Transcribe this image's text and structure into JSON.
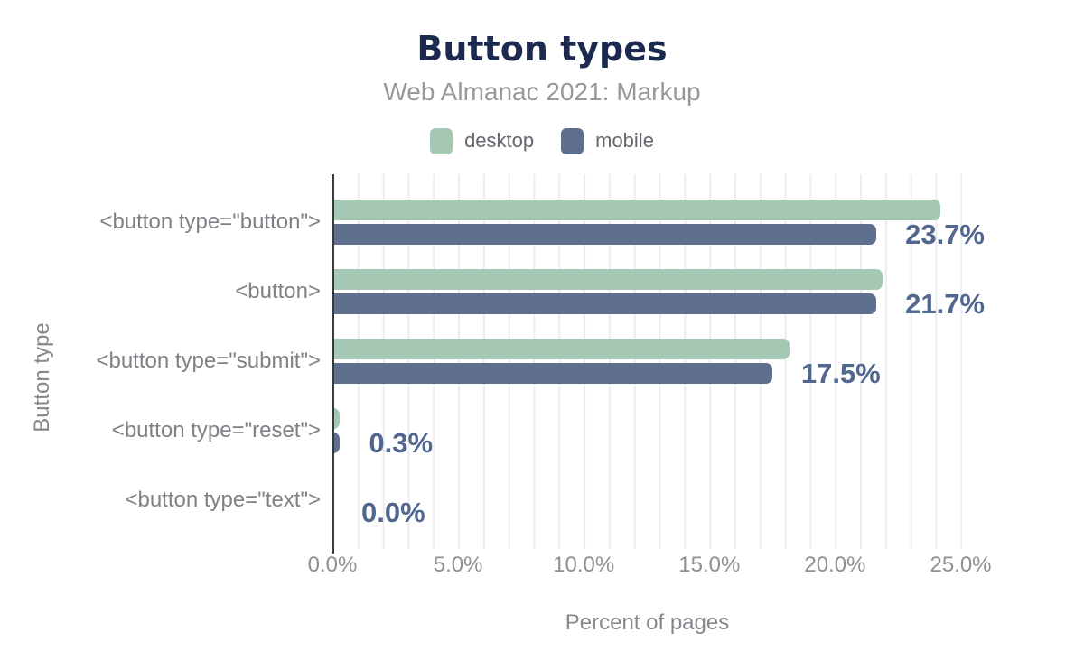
{
  "header": {
    "title": "Button types",
    "subtitle": "Web Almanac 2021: Markup"
  },
  "axes": {
    "x_title": "Percent of pages",
    "y_title": "Button type"
  },
  "chart_data": {
    "type": "bar",
    "orientation": "horizontal",
    "title": "Button types",
    "subtitle": "Web Almanac 2021: Markup",
    "xlabel": "Percent of pages",
    "ylabel": "Button type",
    "legend_position": "top",
    "grid": "vertical gridlines every 1%",
    "xlim": [
      0,
      26
    ],
    "categories": [
      "<button type=\"button\">",
      "<button>",
      "<button type=\"submit\">",
      "<button type=\"reset\">",
      "<button type=\"text\">"
    ],
    "series": [
      {
        "name": "desktop",
        "color": "#a5c8b4",
        "values": [
          24.2,
          21.9,
          18.2,
          0.3,
          0.05
        ]
      },
      {
        "name": "mobile",
        "color": "#5f708e",
        "values": [
          23.7,
          21.7,
          17.5,
          0.3,
          0
        ]
      }
    ],
    "bar_labels": {
      "labeled_series": "mobile",
      "values": [
        "23.7%",
        "21.7%",
        "17.5%",
        "0.3%",
        "0.0%"
      ]
    },
    "xticks": {
      "values": [
        0,
        5,
        10,
        15,
        20,
        25
      ],
      "labels": [
        "0.0%",
        "5.0%",
        "10.0%",
        "15.0%",
        "20.0%",
        "25.0%"
      ]
    }
  },
  "colors": {
    "title": "#1b2a4e",
    "subtitle": "#98999c",
    "legend_text": "#63676c",
    "category_text": "#7e8286",
    "tick_text": "#8d9094",
    "axis_title_text": "#85898d",
    "data_label": "#51678f",
    "axis_line": "#37393c",
    "grid_line": "#ececee",
    "desktop": "#a5c8b4",
    "mobile": "#5f708e"
  }
}
